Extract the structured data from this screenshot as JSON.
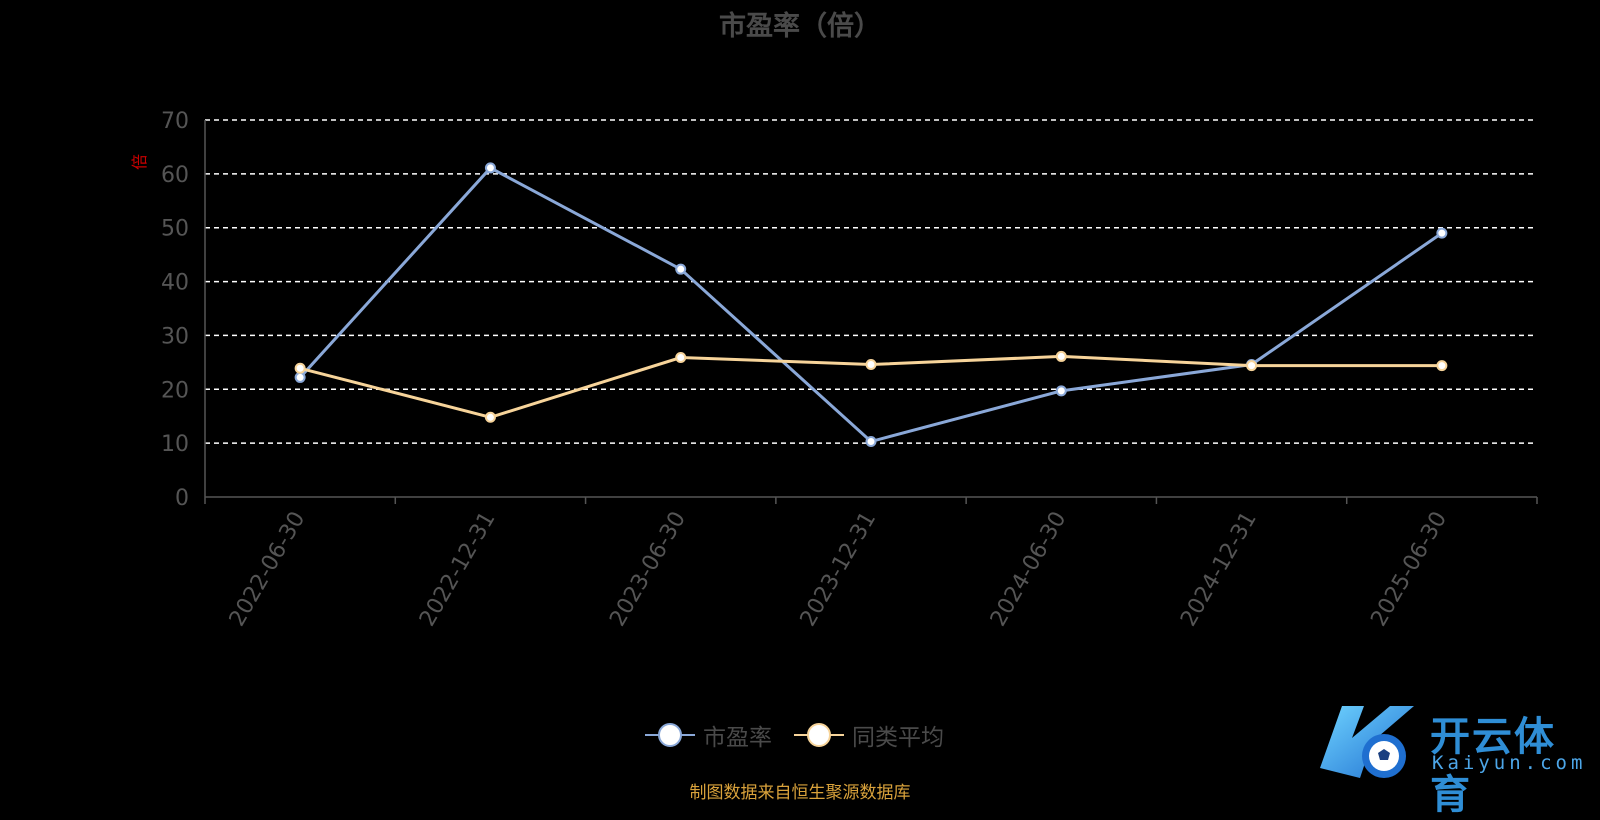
{
  "chart_data": {
    "type": "line",
    "title": "市盈率（倍）",
    "ylabel": "",
    "unit_label": "倍",
    "ylim": [
      0,
      70
    ],
    "yticks": [
      0,
      10,
      20,
      30,
      40,
      50,
      60,
      70
    ],
    "grid": true,
    "legend_position": "bottom",
    "categories": [
      "2022-06-30",
      "2022-12-31",
      "2023-06-30",
      "2023-12-31",
      "2024-06-30",
      "2024-12-31",
      "2025-06-30"
    ],
    "series": [
      {
        "name": "市盈率",
        "color": "#8aa8d8",
        "values": [
          22.2,
          61.1,
          42.3,
          10.3,
          19.7,
          24.6,
          49.0
        ]
      },
      {
        "name": "同类平均",
        "color": "#f7d49a",
        "values": [
          23.9,
          14.8,
          25.9,
          24.6,
          26.1,
          24.4,
          24.4
        ]
      }
    ]
  },
  "legend": {
    "items": [
      {
        "label": "市盈率",
        "color": "#8aa8d8"
      },
      {
        "label": "同类平均",
        "color": "#f7d49a"
      }
    ]
  },
  "source_note": "制图数据来自恒生聚源数据库",
  "watermark": {
    "text": "开云体育",
    "subtext": "Kaiyun.com"
  }
}
